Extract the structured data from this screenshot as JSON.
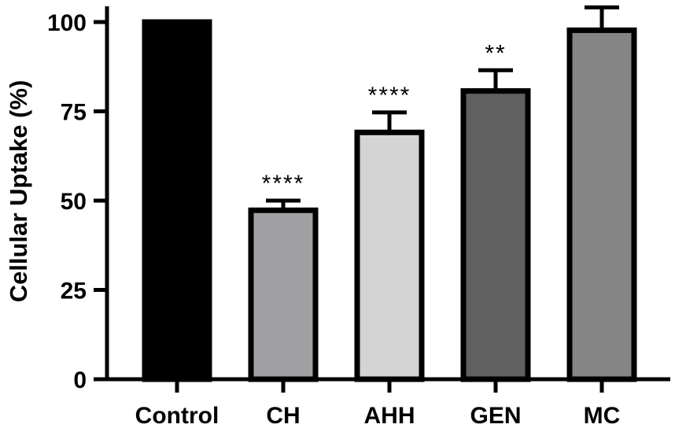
{
  "chart_data": {
    "type": "bar",
    "ylabel": "Cellular Uptake (%)",
    "xlabel": "",
    "ylim": [
      0,
      100
    ],
    "yticks": [
      0,
      25,
      50,
      75,
      100
    ],
    "yticks_labels": [
      "0",
      "25",
      "50",
      "75",
      "100"
    ],
    "grid": false,
    "categories": [
      "Control",
      "CH",
      "AHH",
      "GEN",
      "MC"
    ],
    "values": [
      100,
      47.3,
      69.1,
      80.7,
      97.7
    ],
    "errors": [
      0,
      2.7,
      5.6,
      5.8,
      6.4
    ],
    "significance": [
      "",
      "****",
      "****",
      "**",
      ""
    ],
    "colors": [
      "#000000",
      "#a0a0a3",
      "#d4d4d4",
      "#606060",
      "#858585"
    ]
  }
}
